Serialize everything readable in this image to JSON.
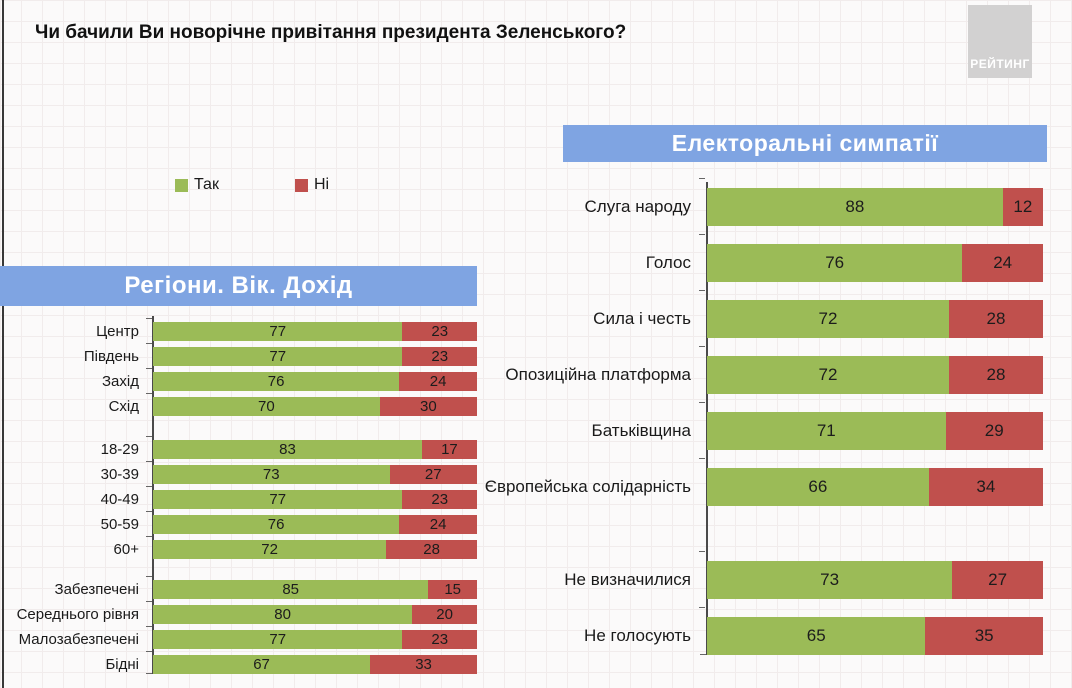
{
  "title": "Чи бачили Ви новорічне привітання президента Зеленського?",
  "logo": {
    "text": "РЕЙТИНГ"
  },
  "legend": {
    "yes": "Так",
    "no": "Ні"
  },
  "colors": {
    "yes": "#9bbb57",
    "no": "#c0504d",
    "banner": "#7fa4e2",
    "logo_bg": "#d2d1d1"
  },
  "chart_data": [
    {
      "type": "bar",
      "orientation": "horizontal",
      "stacked": true,
      "title": "Регіони. Вік. Дохід",
      "xlim": [
        0,
        100
      ],
      "series_names": [
        "Так",
        "Ні"
      ],
      "groups": [
        {
          "categories": [
            "Центр",
            "Південь",
            "Захід",
            "Схід"
          ],
          "series": [
            {
              "name": "Так",
              "values": [
                77,
                77,
                76,
                70
              ]
            },
            {
              "name": "Ні",
              "values": [
                23,
                23,
                24,
                30
              ]
            }
          ]
        },
        {
          "categories": [
            "18-29",
            "30-39",
            "40-49",
            "50-59",
            "60+"
          ],
          "series": [
            {
              "name": "Так",
              "values": [
                83,
                73,
                77,
                76,
                72
              ]
            },
            {
              "name": "Ні",
              "values": [
                17,
                27,
                23,
                24,
                28
              ]
            }
          ]
        },
        {
          "categories": [
            "Забезпечені",
            "Середнього рівня",
            "Малозабезпечені",
            "Бідні"
          ],
          "series": [
            {
              "name": "Так",
              "values": [
                85,
                80,
                77,
                67
              ]
            },
            {
              "name": "Ні",
              "values": [
                15,
                20,
                23,
                33
              ]
            }
          ]
        }
      ]
    },
    {
      "type": "bar",
      "orientation": "horizontal",
      "stacked": true,
      "title": "Електоральні симпатії",
      "xlim": [
        0,
        100
      ],
      "series_names": [
        "Так",
        "Ні"
      ],
      "groups": [
        {
          "categories": [
            "Слуга народу",
            "Голос",
            "Сила і честь",
            "Опозиційна платформа",
            "Батьківщина",
            "Європейська солідарність"
          ],
          "series": [
            {
              "name": "Так",
              "values": [
                88,
                76,
                72,
                72,
                71,
                66
              ]
            },
            {
              "name": "Ні",
              "values": [
                12,
                24,
                28,
                28,
                29,
                34
              ]
            }
          ]
        },
        {
          "categories": [
            "Не визначилися",
            "Не голосують"
          ],
          "series": [
            {
              "name": "Так",
              "values": [
                73,
                65
              ]
            },
            {
              "name": "Ні",
              "values": [
                27,
                35
              ]
            }
          ]
        }
      ]
    }
  ]
}
